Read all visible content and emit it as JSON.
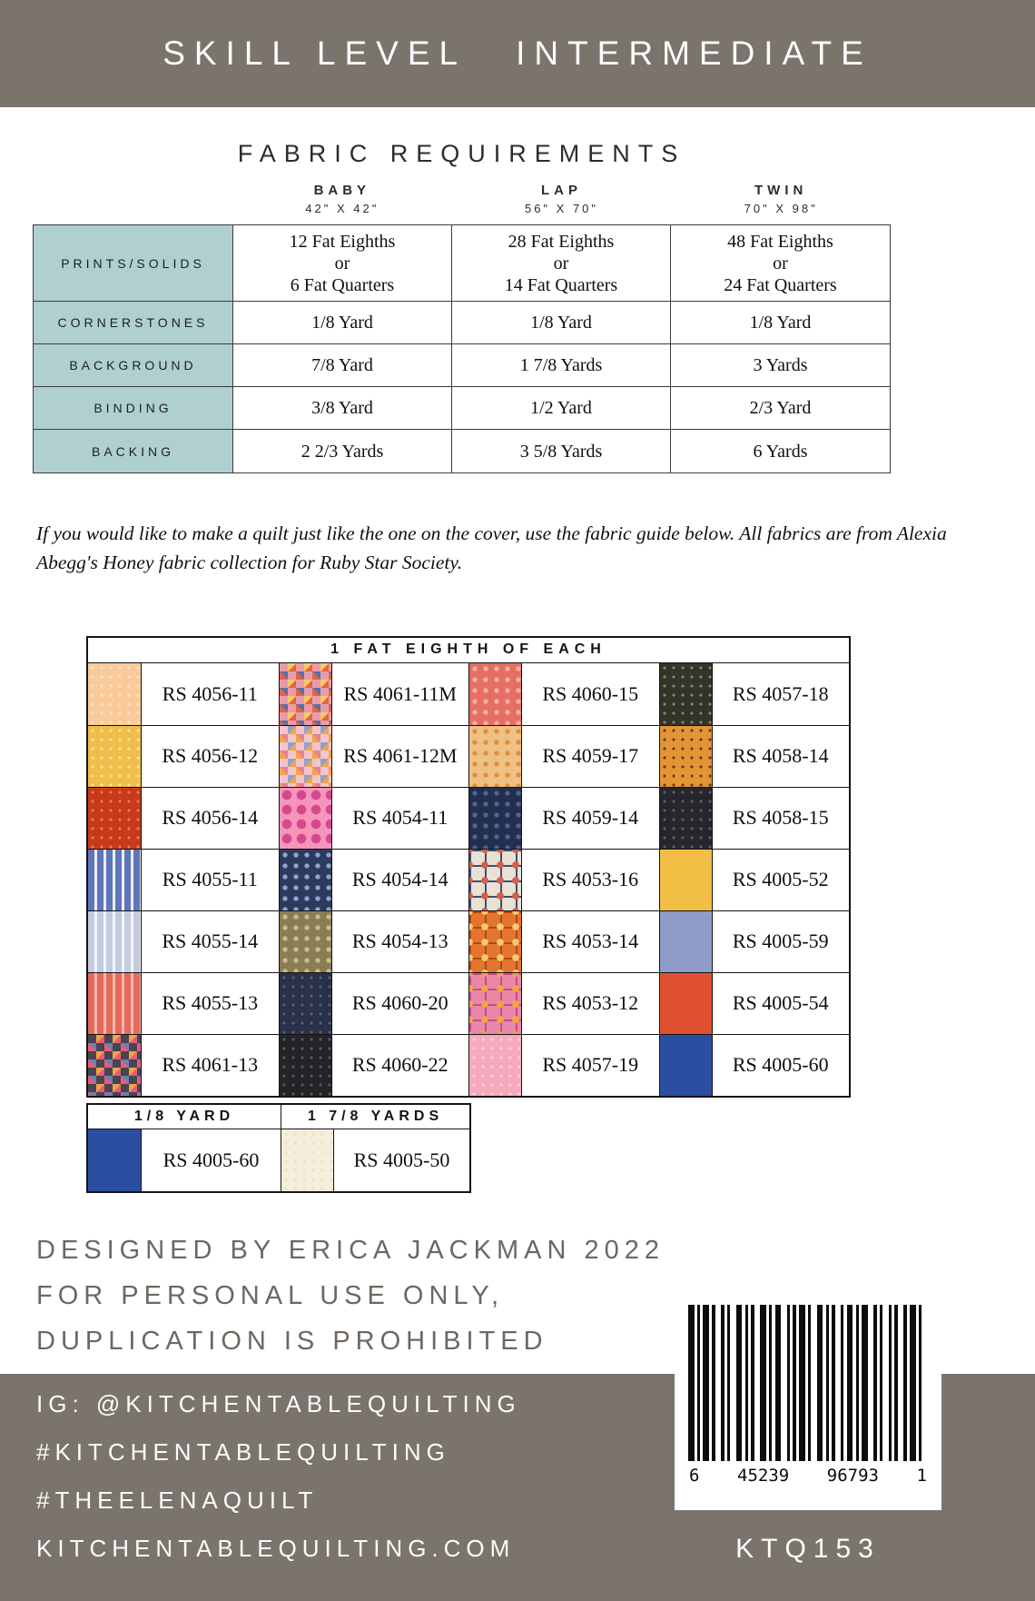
{
  "colors": {
    "band_bg": "#7B746D",
    "row_header_bg": "#AFCFD1",
    "designer_text": "#6E6760"
  },
  "top_banner": {
    "left": "SKILL LEVEL",
    "right": "INTERMEDIATE"
  },
  "fabric_requirements": {
    "title": "FABRIC REQUIREMENTS",
    "columns": [
      {
        "name": "BABY",
        "size": "42\" X 42\""
      },
      {
        "name": "LAP",
        "size": "56\" X 70\""
      },
      {
        "name": "TWIN",
        "size": "70\" X 98\""
      }
    ],
    "rows": [
      {
        "label": "PRINTS/SOLIDS",
        "values": [
          [
            "12 Fat Eighths",
            "or",
            "6 Fat Quarters"
          ],
          [
            "28 Fat Eighths",
            "or",
            "14 Fat Quarters"
          ],
          [
            "48 Fat Eighths",
            "or",
            "24 Fat Quarters"
          ]
        ]
      },
      {
        "label": "CORNERSTONES",
        "values": [
          [
            "1/8 Yard"
          ],
          [
            "1/8 Yard"
          ],
          [
            "1/8 Yard"
          ]
        ]
      },
      {
        "label": "BACKGROUND",
        "values": [
          [
            "7/8 Yard"
          ],
          [
            "1 7/8 Yards"
          ],
          [
            "3 Yards"
          ]
        ]
      },
      {
        "label": "BINDING",
        "values": [
          [
            "3/8 Yard"
          ],
          [
            "1/2 Yard"
          ],
          [
            "2/3 Yard"
          ]
        ]
      },
      {
        "label": "BACKING",
        "values": [
          [
            "2 2/3 Yards"
          ],
          [
            "3 5/8 Yards"
          ],
          [
            "6 Yards"
          ]
        ]
      }
    ]
  },
  "intro": "If you would like to make a quilt just like the one on the cover, use the fabric guide below. All fabrics are from Alexia Abegg's Honey fabric collection for Ruby Star Society.",
  "fabric_guide": {
    "header": "1 FAT EIGHTH OF EACH",
    "swatches": [
      {
        "code": "RS 4056-11",
        "pattern": "speckle",
        "c1": "#F9CB9B",
        "c2": "#FCE3C4"
      },
      {
        "code": "RS 4061-11M",
        "pattern": "multi",
        "c1": "#E89CAA",
        "c2": "#E8633F",
        "c3": "#F5C96B",
        "c4": "#5B6FA8"
      },
      {
        "code": "RS 4060-15",
        "pattern": "dots",
        "c1": "#E56F62",
        "c2": "#F4AFA6"
      },
      {
        "code": "RS 4057-18",
        "pattern": "speckle",
        "c1": "#33332A",
        "c2": "#8A8A6B"
      },
      {
        "code": "RS 4056-12",
        "pattern": "speckle",
        "c1": "#F0BE4A",
        "c2": "#FBE2A3"
      },
      {
        "code": "RS 4061-12M",
        "pattern": "multi",
        "c1": "#F2C4CC",
        "c2": "#F2A541",
        "c3": "#8FA0CC",
        "c4": "#E87F9A"
      },
      {
        "code": "RS 4059-17",
        "pattern": "dots",
        "c1": "#EFC084",
        "c2": "#DD8F3F"
      },
      {
        "code": "RS 4058-14",
        "pattern": "speckle",
        "c1": "#E39434",
        "c2": "#5A3A1A"
      },
      {
        "code": "RS 4056-14",
        "pattern": "speckle",
        "c1": "#C83A1C",
        "c2": "#EE7A50"
      },
      {
        "code": "RS 4054-11",
        "pattern": "bigdots",
        "c1": "#F595BB",
        "c2": "#D6488E"
      },
      {
        "code": "RS 4059-14",
        "pattern": "dots",
        "c1": "#232F4E",
        "c2": "#55648C"
      },
      {
        "code": "RS 4058-15",
        "pattern": "speckle",
        "c1": "#26262C",
        "c2": "#5E5E6B"
      },
      {
        "code": "RS 4055-11",
        "pattern": "stripes",
        "c1": "#5E76BA",
        "c2": "#EDEFF7"
      },
      {
        "code": "RS 4054-14",
        "pattern": "dots",
        "c1": "#2B3A5E",
        "c2": "#93A3C9"
      },
      {
        "code": "RS 4053-16",
        "pattern": "granny",
        "c1": "#E9E1D1",
        "c2": "#3C4C7C",
        "c3": "#D65F4A"
      },
      {
        "code": "RS 4005-52",
        "pattern": "solid",
        "c1": "#F2BE45"
      },
      {
        "code": "RS 4055-14",
        "pattern": "stripes",
        "c1": "#C4CBE1",
        "c2": "#F3F4F9"
      },
      {
        "code": "RS 4054-13",
        "pattern": "dots",
        "c1": "#8B7C53",
        "c2": "#C9BC92"
      },
      {
        "code": "RS 4053-14",
        "pattern": "granny",
        "c1": "#E2762E",
        "c2": "#B8441C",
        "c3": "#F2C96B"
      },
      {
        "code": "RS 4005-59",
        "pattern": "solid",
        "c1": "#8F9BC8"
      },
      {
        "code": "RS 4055-13",
        "pattern": "stripes",
        "c1": "#E56A5B",
        "c2": "#F6B8AE"
      },
      {
        "code": "RS 4060-20",
        "pattern": "speckle",
        "c1": "#2A3148",
        "c2": "#56607E"
      },
      {
        "code": "RS 4053-12",
        "pattern": "granny",
        "c1": "#E987A6",
        "c2": "#C94A8C",
        "c3": "#F2A541"
      },
      {
        "code": "RS 4005-54",
        "pattern": "solid",
        "c1": "#E1502E"
      },
      {
        "code": "RS 4061-13",
        "pattern": "multi",
        "c1": "#4A4450",
        "c2": "#E85D75",
        "c3": "#F2A541",
        "c4": "#6B7FB8"
      },
      {
        "code": "RS 4060-22",
        "pattern": "speckle",
        "c1": "#242428",
        "c2": "#5A5A62"
      },
      {
        "code": "RS 4057-19",
        "pattern": "speckle",
        "c1": "#F5AABE",
        "c2": "#FBD2DC"
      },
      {
        "code": "RS 4005-60",
        "pattern": "solid",
        "c1": "#2B4EA2"
      }
    ],
    "extra": {
      "headers": [
        "1/8 YARD",
        "1 7/8 YARDS"
      ],
      "swatches": [
        {
          "code": "RS 4005-60",
          "pattern": "solid",
          "c1": "#2B4EA2"
        },
        {
          "code": "RS 4005-50",
          "pattern": "speckle",
          "c1": "#F6EEDD",
          "c2": "#EBDFC6"
        }
      ]
    }
  },
  "designer": {
    "lines": [
      "DESIGNED BY ERICA JACKMAN 2022",
      "FOR PERSONAL USE ONLY,",
      "DUPLICATION IS PROHIBITED"
    ]
  },
  "footer": {
    "lines": [
      "IG: @KITCHENTABLEQUILTING",
      "#KITCHENTABLEQUILTING",
      "#THEELENAQUILT",
      "KITCHENTABLEQUILTING.COM"
    ]
  },
  "barcode": {
    "digits": [
      "6",
      "45239",
      "96793",
      "1"
    ],
    "code": "KTQ153"
  }
}
